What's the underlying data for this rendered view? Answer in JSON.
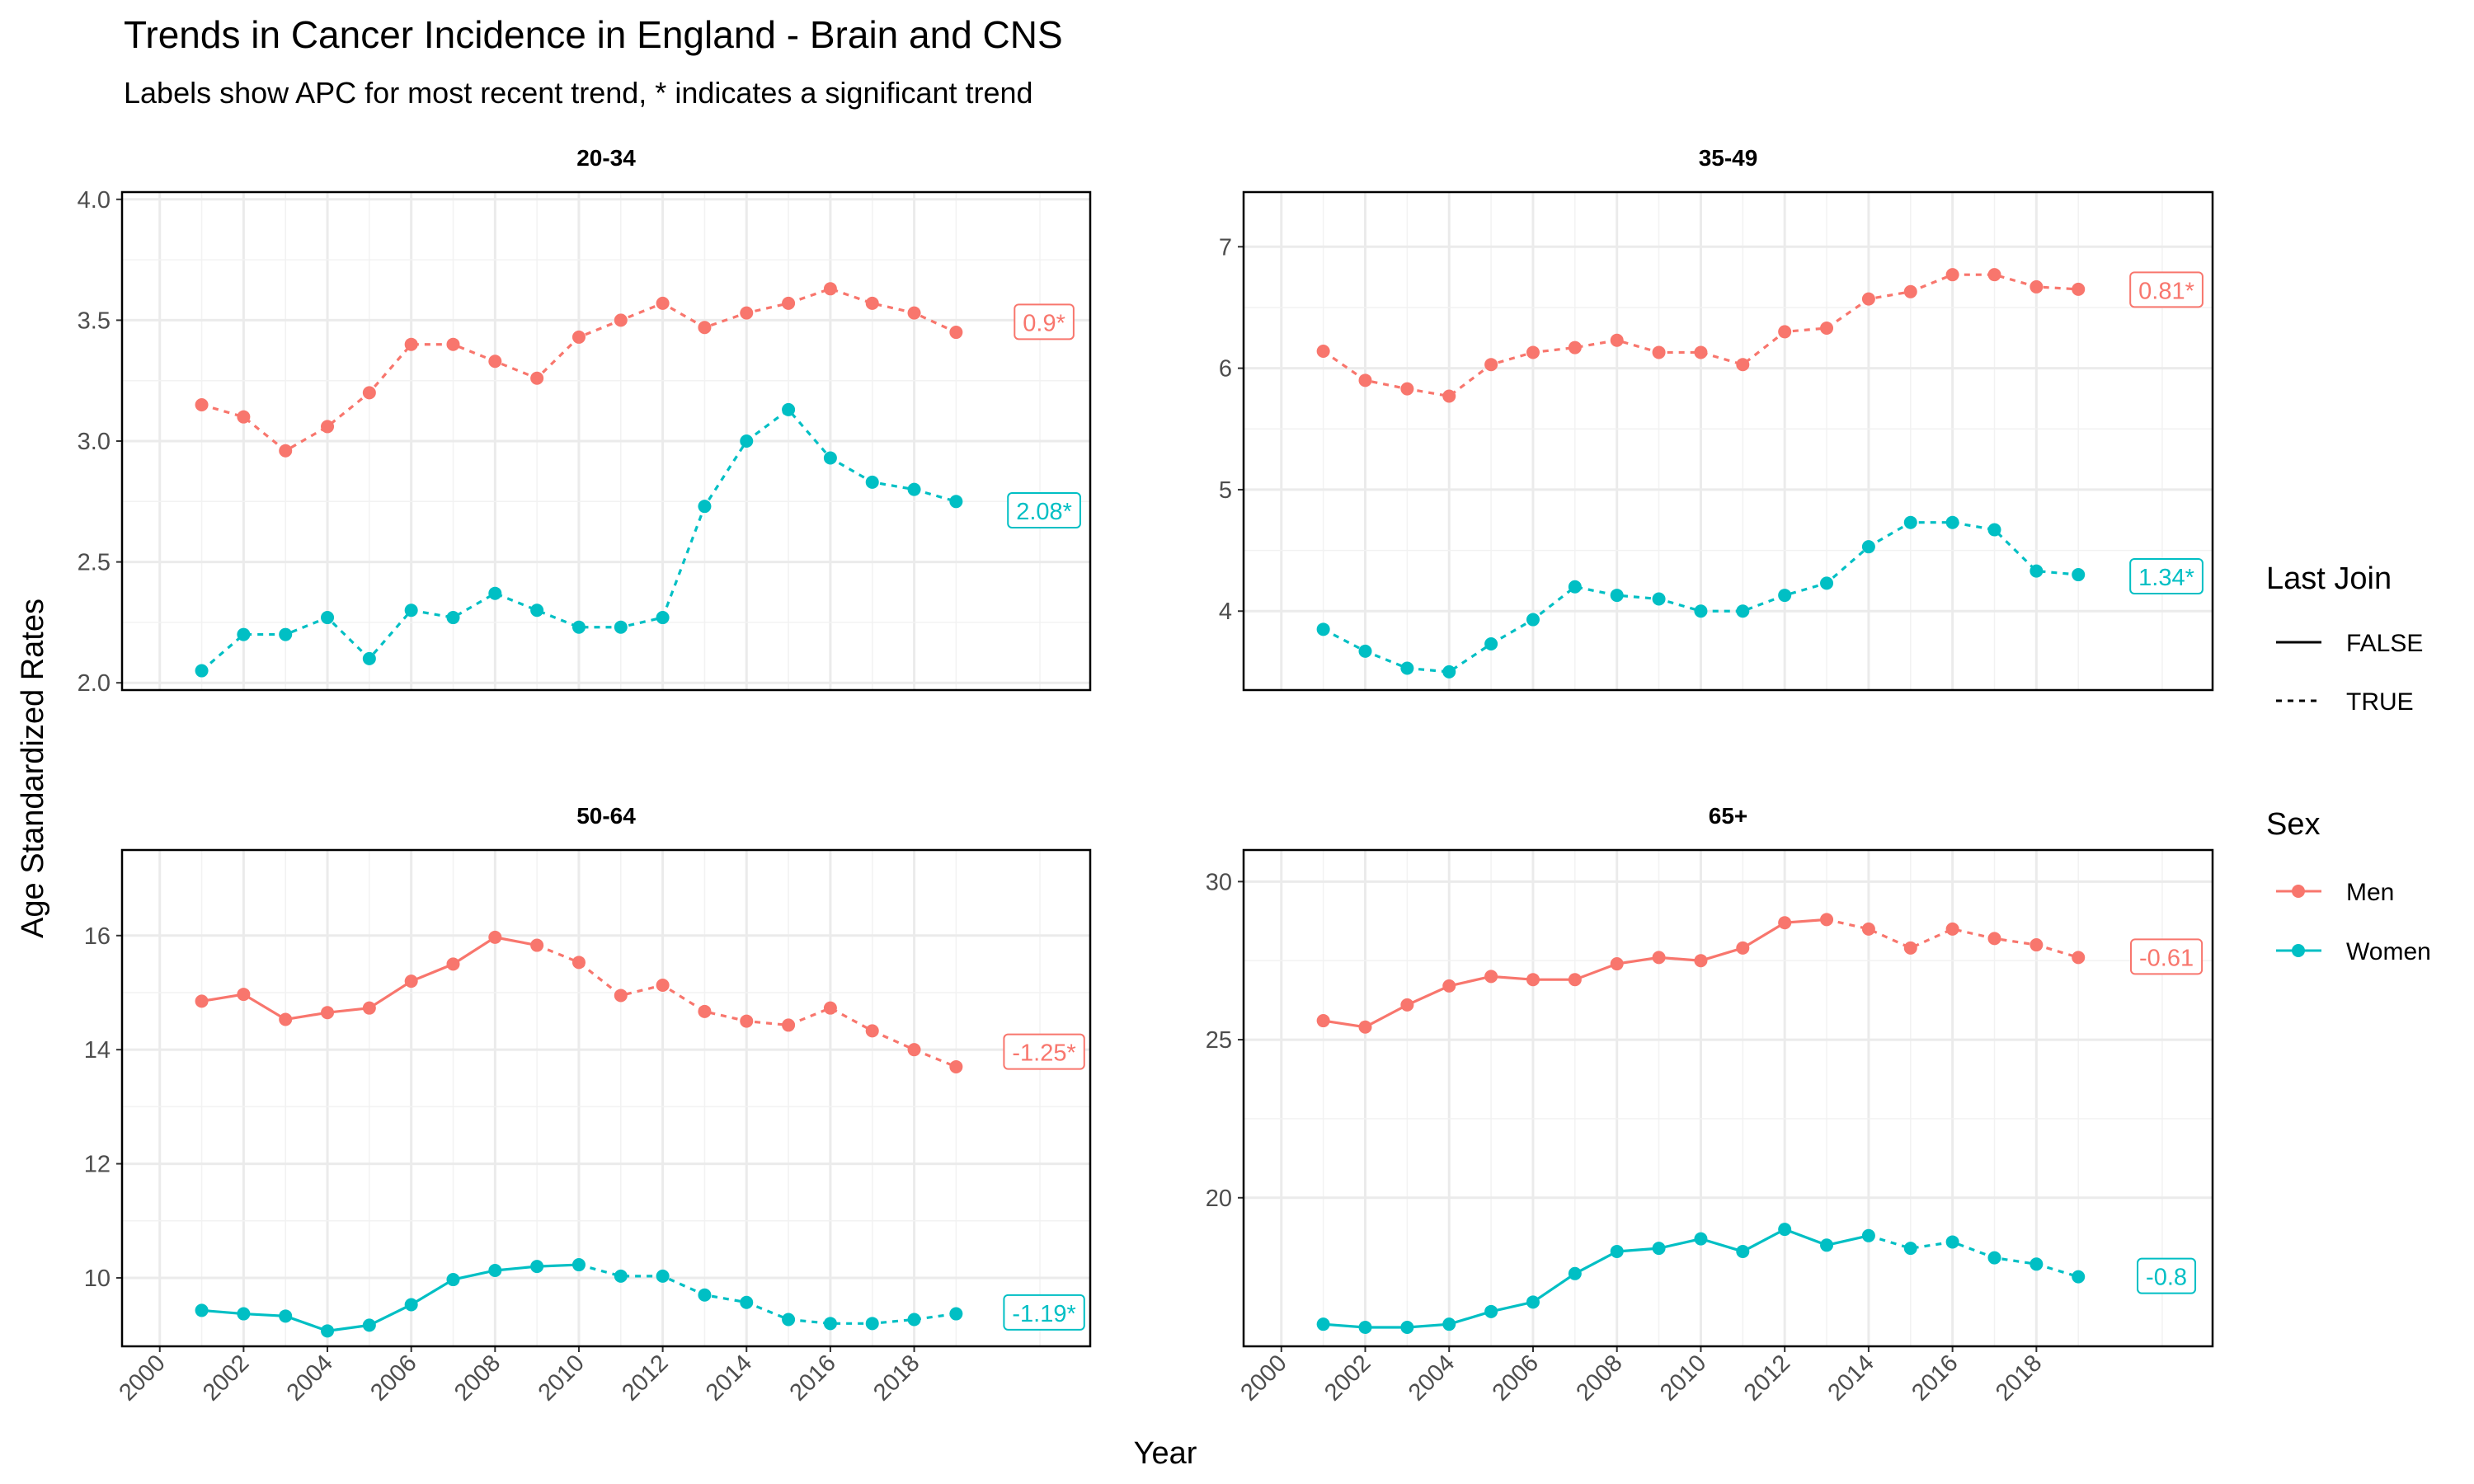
{
  "chart_data": {
    "type": "line",
    "title": "Trends in Cancer Incidence in England - Brain and CNS",
    "subtitle": "Labels show APC for most recent trend, * indicates a significant trend",
    "xlabel": "Year",
    "ylabel": "Age Standardized Rates",
    "x_ticks": [
      "2000",
      "2002",
      "2004",
      "2006",
      "2008",
      "2010",
      "2012",
      "2014",
      "2016",
      "2018"
    ],
    "legends": {
      "linetype": {
        "title": "Last Join",
        "entries": [
          "FALSE",
          "TRUE"
        ]
      },
      "color": {
        "title": "Sex",
        "entries": [
          {
            "name": "Men",
            "color": "#F8766D"
          },
          {
            "name": "Women",
            "color": "#00BFC4"
          }
        ]
      }
    },
    "grid": true,
    "panels": [
      {
        "title": "20-34",
        "ylim": [
          1.97,
          4.03
        ],
        "yticks": [
          "2.0",
          "2.5",
          "3.0",
          "3.5",
          "4.0"
        ],
        "series": [
          {
            "name": "Men",
            "color": "#F8766D",
            "apc_label": "0.9*",
            "apc_y": 3.49,
            "years": [
              2001,
              2002,
              2003,
              2004,
              2005,
              2006,
              2007,
              2008,
              2009,
              2010,
              2011,
              2012,
              2013,
              2014,
              2015,
              2016,
              2017,
              2018,
              2019
            ],
            "values": [
              3.15,
              3.1,
              2.96,
              3.06,
              3.2,
              3.4,
              3.4,
              3.33,
              3.26,
              3.43,
              3.5,
              3.57,
              3.47,
              3.53,
              3.57,
              3.63,
              3.57,
              3.53,
              3.45
            ],
            "solid_until": 2001
          },
          {
            "name": "Women",
            "color": "#00BFC4",
            "apc_label": "2.08*",
            "apc_y": 2.71,
            "years": [
              2001,
              2002,
              2003,
              2004,
              2005,
              2006,
              2007,
              2008,
              2009,
              2010,
              2011,
              2012,
              2013,
              2014,
              2015,
              2016,
              2017,
              2018,
              2019
            ],
            "values": [
              2.05,
              2.2,
              2.2,
              2.27,
              2.1,
              2.3,
              2.27,
              2.37,
              2.3,
              2.23,
              2.23,
              2.27,
              2.73,
              3.0,
              3.13,
              2.93,
              2.83,
              2.8,
              2.75
            ],
            "solid_until": 2001
          }
        ]
      },
      {
        "title": "35-49",
        "ylim": [
          3.35,
          7.45
        ],
        "yticks": [
          "4",
          "5",
          "6",
          "7"
        ],
        "series": [
          {
            "name": "Men",
            "color": "#F8766D",
            "apc_label": "0.81*",
            "apc_y": 6.64,
            "years": [
              2001,
              2002,
              2003,
              2004,
              2005,
              2006,
              2007,
              2008,
              2009,
              2010,
              2011,
              2012,
              2013,
              2014,
              2015,
              2016,
              2017,
              2018,
              2019
            ],
            "values": [
              6.14,
              5.9,
              5.83,
              5.77,
              6.03,
              6.13,
              6.17,
              6.23,
              6.13,
              6.13,
              6.03,
              6.3,
              6.33,
              6.57,
              6.63,
              6.77,
              6.77,
              6.67,
              6.65
            ],
            "solid_until": 2001
          },
          {
            "name": "Women",
            "color": "#00BFC4",
            "apc_label": "1.34*",
            "apc_y": 4.28,
            "years": [
              2001,
              2002,
              2003,
              2004,
              2005,
              2006,
              2007,
              2008,
              2009,
              2010,
              2011,
              2012,
              2013,
              2014,
              2015,
              2016,
              2017,
              2018,
              2019
            ],
            "values": [
              3.85,
              3.67,
              3.53,
              3.5,
              3.73,
              3.93,
              4.2,
              4.13,
              4.1,
              4.0,
              4.0,
              4.13,
              4.23,
              4.53,
              4.73,
              4.73,
              4.67,
              4.33,
              4.3
            ],
            "solid_until": 2001
          }
        ]
      },
      {
        "title": "50-64",
        "ylim": [
          8.8,
          17.5
        ],
        "yticks": [
          "10",
          "12",
          "14",
          "16"
        ],
        "series": [
          {
            "name": "Men",
            "color": "#F8766D",
            "apc_label": "-1.25*",
            "apc_y": 13.95,
            "years": [
              2001,
              2002,
              2003,
              2004,
              2005,
              2006,
              2007,
              2008,
              2009,
              2010,
              2011,
              2012,
              2013,
              2014,
              2015,
              2016,
              2017,
              2018,
              2019
            ],
            "values": [
              14.85,
              14.97,
              14.53,
              14.65,
              14.73,
              15.2,
              15.5,
              15.97,
              15.83,
              15.53,
              14.95,
              15.13,
              14.67,
              14.5,
              14.43,
              14.73,
              14.33,
              14.0,
              13.7
            ],
            "solid_until": 2009
          },
          {
            "name": "Women",
            "color": "#00BFC4",
            "apc_label": "-1.19*",
            "apc_y": 9.38,
            "years": [
              2001,
              2002,
              2003,
              2004,
              2005,
              2006,
              2007,
              2008,
              2009,
              2010,
              2011,
              2012,
              2013,
              2014,
              2015,
              2016,
              2017,
              2018,
              2019
            ],
            "values": [
              9.43,
              9.37,
              9.33,
              9.07,
              9.17,
              9.53,
              9.97,
              10.13,
              10.2,
              10.23,
              10.03,
              10.03,
              9.7,
              9.57,
              9.27,
              9.2,
              9.2,
              9.27,
              9.37
            ],
            "solid_until": 2010
          }
        ]
      },
      {
        "title": "65+",
        "ylim": [
          15.3,
          31.0
        ],
        "yticks": [
          "20",
          "25",
          "30"
        ],
        "series": [
          {
            "name": "Men",
            "color": "#F8766D",
            "apc_label": "-0.61",
            "apc_y": 27.6,
            "years": [
              2001,
              2002,
              2003,
              2004,
              2005,
              2006,
              2007,
              2008,
              2009,
              2010,
              2011,
              2012,
              2013,
              2014,
              2015,
              2016,
              2017,
              2018,
              2019
            ],
            "values": [
              25.6,
              25.4,
              26.1,
              26.7,
              27.0,
              26.9,
              26.9,
              27.4,
              27.6,
              27.5,
              27.9,
              28.7,
              28.8,
              28.5,
              27.9,
              28.5,
              28.2,
              28.0,
              27.6
            ],
            "solid_until": 2013
          },
          {
            "name": "Women",
            "color": "#00BFC4",
            "apc_label": "-0.8",
            "apc_y": 17.5,
            "years": [
              2001,
              2002,
              2003,
              2004,
              2005,
              2006,
              2007,
              2008,
              2009,
              2010,
              2011,
              2012,
              2013,
              2014,
              2015,
              2016,
              2017,
              2018,
              2019
            ],
            "values": [
              16.0,
              15.9,
              15.9,
              16.0,
              16.4,
              16.7,
              17.6,
              18.3,
              18.4,
              18.7,
              18.3,
              19.0,
              18.5,
              18.8,
              18.4,
              18.6,
              18.1,
              17.9,
              17.5
            ],
            "solid_until": 2014
          }
        ]
      }
    ]
  }
}
